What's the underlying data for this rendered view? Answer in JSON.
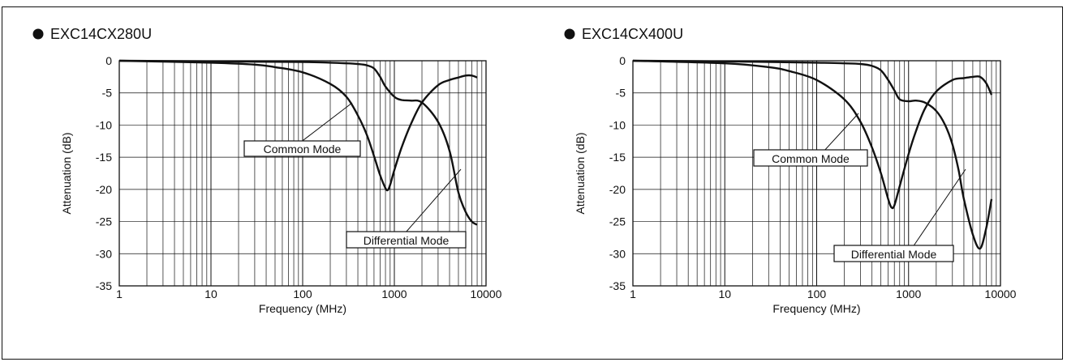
{
  "colors": {
    "curve": "#111111",
    "grid": "#111111",
    "background": "#ffffff"
  },
  "chart_data": [
    {
      "type": "line",
      "title": "EXC14CX280U",
      "xlabel": "Frequency (MHz)",
      "ylabel": "Attenuation (dB)",
      "x_scale": "log",
      "xlim": [
        1,
        10000
      ],
      "ylim": [
        -35,
        0
      ],
      "x_ticks": [
        "1",
        "10",
        "100",
        "1000",
        "10000"
      ],
      "y_ticks": [
        "0",
        "-5",
        "-10",
        "-15",
        "-20",
        "-25",
        "-30",
        "-35"
      ],
      "grid": true,
      "series": [
        {
          "name": "Common Mode",
          "x": [
            1,
            10,
            30,
            50,
            100,
            200,
            300,
            400,
            500,
            600,
            700,
            800,
            850,
            900,
            1000,
            1200,
            1500,
            2000,
            3000,
            4000,
            5000,
            6000,
            7000,
            8000
          ],
          "y": [
            0,
            -0.3,
            -0.6,
            -1.0,
            -1.8,
            -3.6,
            -5.6,
            -8.5,
            -11.5,
            -14.8,
            -17.8,
            -19.8,
            -20.1,
            -19.3,
            -17.0,
            -13.5,
            -10.0,
            -6.5,
            -3.8,
            -3.0,
            -2.6,
            -2.3,
            -2.3,
            -2.6
          ]
        },
        {
          "name": "Differential Mode",
          "x": [
            1,
            10,
            100,
            200,
            300,
            400,
            500,
            600,
            700,
            800,
            1000,
            1200,
            1500,
            2000,
            3000,
            4000,
            5000,
            6000,
            7000,
            8000
          ],
          "y": [
            0,
            -0.1,
            -0.2,
            -0.3,
            -0.4,
            -0.5,
            -0.7,
            -1.2,
            -2.5,
            -4.0,
            -5.6,
            -6.1,
            -6.2,
            -6.5,
            -9.5,
            -14.0,
            -20.5,
            -23.5,
            -25.0,
            -25.5
          ]
        }
      ]
    },
    {
      "type": "line",
      "title": "EXC14CX400U",
      "xlabel": "Frequency (MHz)",
      "ylabel": "Attenuation (dB)",
      "x_scale": "log",
      "xlim": [
        1,
        10000
      ],
      "ylim": [
        -35,
        0
      ],
      "x_ticks": [
        "1",
        "10",
        "100",
        "1000",
        "10000"
      ],
      "y_ticks": [
        "0",
        "-5",
        "-10",
        "-15",
        "-20",
        "-25",
        "-30",
        "-35"
      ],
      "grid": true,
      "series": [
        {
          "name": "Common Mode",
          "x": [
            1,
            10,
            30,
            50,
            100,
            200,
            300,
            400,
            500,
            600,
            650,
            700,
            800,
            1000,
            1200,
            1500,
            2000,
            3000,
            4000,
            5000,
            6000,
            7000,
            8000
          ],
          "y": [
            0,
            -0.4,
            -1.0,
            -1.6,
            -3.0,
            -6.0,
            -9.5,
            -13.5,
            -17.5,
            -21.5,
            -22.8,
            -22.5,
            -19.5,
            -14.5,
            -11.0,
            -7.5,
            -4.8,
            -3.0,
            -2.7,
            -2.5,
            -2.5,
            -3.5,
            -5.3
          ]
        },
        {
          "name": "Differential Mode",
          "x": [
            1,
            10,
            100,
            200,
            300,
            400,
            500,
            600,
            700,
            800,
            1000,
            1200,
            1500,
            2000,
            2500,
            3000,
            3500,
            4000,
            5000,
            6000,
            7000,
            8000
          ],
          "y": [
            0,
            -0.1,
            -0.3,
            -0.4,
            -0.5,
            -0.8,
            -1.5,
            -3.0,
            -4.6,
            -6.0,
            -6.3,
            -6.2,
            -6.5,
            -7.8,
            -10.0,
            -13.0,
            -17.0,
            -21.5,
            -27.0,
            -29.2,
            -26.0,
            -21.5
          ]
        }
      ]
    }
  ]
}
